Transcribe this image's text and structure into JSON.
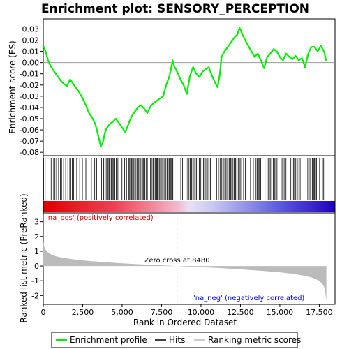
{
  "chart_data": {
    "type": "line",
    "title": "Enrichment plot: SENSORY_PERCEPTION",
    "top_panel": {
      "ylabel": "Enrichment score (ES)",
      "ylim": [
        -0.083,
        0.039
      ],
      "yticks": [
        -0.08,
        -0.07,
        -0.06,
        -0.05,
        -0.04,
        -0.03,
        -0.02,
        -0.01,
        0.0,
        0.01,
        0.02,
        0.03
      ],
      "ytick_labels": [
        "-0.08",
        "-0.07",
        "-0.06",
        "-0.05",
        "-0.04",
        "-0.03",
        "-0.02",
        "-0.01",
        "0.00",
        "0.01",
        "0.02",
        "0.03"
      ],
      "series": [
        {
          "name": "Enrichment profile",
          "color": "#00ee00",
          "x": [
            0,
            150,
            300,
            500,
            700,
            900,
            1100,
            1300,
            1500,
            1700,
            1900,
            2100,
            2300,
            2500,
            2700,
            2900,
            3100,
            3300,
            3500,
            3650,
            3800,
            3900,
            4000,
            4200,
            4400,
            4600,
            4800,
            5000,
            5200,
            5400,
            5600,
            5800,
            6000,
            6200,
            6400,
            6600,
            6800,
            7000,
            7200,
            7400,
            7600,
            7800,
            8000,
            8100,
            8200,
            8300,
            8480,
            8700,
            8900,
            9100,
            9300,
            9500,
            9700,
            9900,
            10100,
            10300,
            10500,
            10700,
            10900,
            11050,
            11200,
            11300,
            11500,
            11700,
            11900,
            12100,
            12300,
            12450,
            12600,
            12800,
            13000,
            13200,
            13400,
            13600,
            13800,
            14000,
            14200,
            14400,
            14600,
            14800,
            15000,
            15200,
            15400,
            15600,
            15800,
            16000,
            16200,
            16400,
            16600,
            16800,
            17000,
            17200,
            17400,
            17600,
            17800,
            17950
          ],
          "y": [
            0.015,
            0.01,
            0.002,
            -0.004,
            -0.008,
            -0.012,
            -0.016,
            -0.019,
            -0.021,
            -0.015,
            -0.019,
            -0.023,
            -0.027,
            -0.032,
            -0.038,
            -0.045,
            -0.049,
            -0.055,
            -0.066,
            -0.075,
            -0.07,
            -0.063,
            -0.059,
            -0.055,
            -0.053,
            -0.05,
            -0.054,
            -0.058,
            -0.062,
            -0.055,
            -0.048,
            -0.044,
            -0.04,
            -0.038,
            -0.041,
            -0.045,
            -0.039,
            -0.036,
            -0.034,
            -0.032,
            -0.03,
            -0.02,
            -0.012,
            -0.006,
            0.002,
            -0.003,
            -0.008,
            -0.015,
            -0.02,
            -0.028,
            -0.012,
            -0.004,
            -0.01,
            -0.013,
            -0.008,
            -0.006,
            -0.004,
            -0.012,
            -0.018,
            -0.022,
            -0.01,
            0.005,
            0.01,
            0.014,
            0.018,
            0.022,
            0.025,
            0.031,
            0.026,
            0.02,
            0.015,
            0.01,
            0.005,
            0.008,
            0.002,
            -0.005,
            0.005,
            0.008,
            0.012,
            0.01,
            0.005,
            0.002,
            0.008,
            0.005,
            0.003,
            0.006,
            0.002,
            0.004,
            -0.004,
            0.008,
            0.014,
            0.014,
            0.01,
            0.015,
            0.01,
            0.001
          ]
        }
      ]
    },
    "hits_panel": {
      "legend_name": "Hits",
      "hit_positions": [
        20,
        120,
        430,
        520,
        660,
        740,
        840,
        970,
        1080,
        1160,
        1290,
        1420,
        1560,
        1680,
        1740,
        1840,
        1930,
        2120,
        2310,
        2480,
        2700,
        3050,
        3260,
        3380,
        3690,
        3830,
        3910,
        3990,
        4070,
        4120,
        4180,
        4240,
        4310,
        4390,
        4460,
        4540,
        4620,
        4730,
        4990,
        5160,
        5280,
        5380,
        5430,
        5480,
        5540,
        5600,
        5660,
        5720,
        5800,
        5880,
        5960,
        6030,
        6110,
        6190,
        6290,
        6360,
        6440,
        6520,
        6600,
        6800,
        6900,
        6970,
        7030,
        7110,
        7190,
        7240,
        7300,
        7380,
        7440,
        7520,
        7580,
        7660,
        7720,
        7780,
        7860,
        7920,
        7990,
        8060,
        8110,
        8160,
        8210,
        8290,
        8720,
        8830,
        9060,
        9160,
        9240,
        9320,
        9400,
        9480,
        9560,
        9640,
        9720,
        9810,
        9890,
        9970,
        10060,
        10160,
        10230,
        10310,
        10440,
        10520,
        10600,
        10990,
        11110,
        11210,
        11260,
        11320,
        11390,
        11460,
        11560,
        11640,
        11720,
        11800,
        11880,
        11950,
        12030,
        12110,
        12190,
        12270,
        12360,
        12440,
        12520,
        12700,
        12810,
        13140,
        13320,
        13490,
        13560,
        13640,
        13710,
        13790,
        14060,
        14180,
        14260,
        14340,
        14420,
        14500,
        14580,
        14660,
        14740,
        14820,
        15140,
        15220,
        15310,
        15390,
        15680,
        15770,
        15860,
        15930,
        16010,
        16110,
        16210,
        16290,
        16770,
        16840,
        16910,
        16980,
        17060,
        17140,
        17190,
        17260,
        17330,
        17420,
        17520,
        17700,
        17780
      ]
    },
    "bottom_panel": {
      "ylabel": "Ranked list metric (PreRanked)",
      "xlabel": "Rank in Ordered Dataset",
      "ylim": [
        -2.6,
        3.6
      ],
      "yticks": [
        -2,
        -1,
        0,
        1,
        2,
        3
      ],
      "ytick_labels": [
        "-2",
        "-1",
        "0",
        "1",
        "2",
        "3"
      ],
      "xlim": [
        0,
        18500
      ],
      "xticks": [
        0,
        2500,
        5000,
        7500,
        10000,
        12500,
        15000,
        17500
      ],
      "xtick_labels": [
        "0",
        "2,500",
        "5,000",
        "7,500",
        "10,000",
        "12,500",
        "15,000",
        "17,500"
      ],
      "series": [
        {
          "name": "Ranking metric scores",
          "color": "#bbbbbb",
          "x": [
            0,
            50,
            150,
            300,
            500,
            800,
            1200,
            1700,
            2300,
            3000,
            4000,
            5000,
            6000,
            7000,
            8000,
            8480,
            9000,
            10000,
            11000,
            12000,
            13000,
            14000,
            15000,
            15800,
            16500,
            17000,
            17400,
            17650,
            17800,
            17880,
            17950
          ],
          "y": [
            1.65,
            1.35,
            1.1,
            0.92,
            0.78,
            0.66,
            0.56,
            0.48,
            0.4,
            0.33,
            0.25,
            0.18,
            0.12,
            0.07,
            0.02,
            0.0,
            -0.03,
            -0.08,
            -0.13,
            -0.19,
            -0.26,
            -0.34,
            -0.43,
            -0.53,
            -0.65,
            -0.78,
            -0.95,
            -1.15,
            -1.4,
            -1.8,
            -2.4
          ]
        }
      ],
      "zero_cross_label": "Zero cross at 8480",
      "zero_cross": 8480,
      "pos_label": "'na_pos' (positively correlated)",
      "neg_label": "'na_neg' (negatively correlated)",
      "pos_color": "#cc0000",
      "neg_color": "#0000cc"
    },
    "legend": {
      "placement": "bottom",
      "entries": [
        "Enrichment profile",
        "Hits",
        "Ranking metric scores"
      ]
    }
  }
}
